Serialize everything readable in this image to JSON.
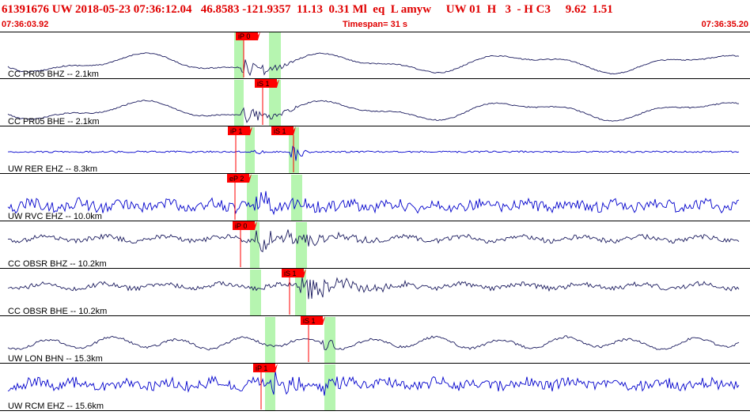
{
  "header": {
    "event_line": "61391676 UW 2018-05-23 07:36:12.04   46.8583 -121.9357  11.13  0.31 Ml  eq  L amyw     UW 01  H   3  - H C3     9.62  1.51",
    "start_time": "07:36:03.92",
    "timespan": "Timespan=  31 s",
    "end_time": "07:36:35.20"
  },
  "colors": {
    "header_red": "#e00000",
    "pick_red": "#ff0000",
    "window_green": "#b6f5b0",
    "trace_blue": "#0000cc",
    "trace_navy": "#1a1a5e"
  },
  "channels": [
    {
      "label": "CC PR05 BHZ -- 2.1km",
      "color": "navy",
      "style": "lowfreq",
      "picks": [
        {
          "text": "iP 0",
          "dir": "down"
        }
      ],
      "windows": 2
    },
    {
      "label": "CC PR05 BHE -- 2.1km",
      "color": "navy",
      "style": "lowfreq",
      "picks": [
        {
          "text": "iS 1",
          "dir": "down"
        }
      ],
      "windows": 2
    },
    {
      "label": "UW RER EHZ -- 8.3km",
      "color": "blue",
      "style": "quiet",
      "picks": [
        {
          "text": "iP 1",
          "dir": "down"
        },
        {
          "text": "iS 1",
          "dir": "down"
        }
      ],
      "windows": 2
    },
    {
      "label": "UW RVC EHZ -- 10.0km",
      "color": "blue",
      "style": "noisy",
      "picks": [
        {
          "text": "eP 2",
          "dir": "down"
        }
      ],
      "windows": 2
    },
    {
      "label": "CC OBSR BHZ -- 10.2km",
      "color": "navy",
      "style": "mid",
      "picks": [
        {
          "text": "iP 0",
          "dir": "down"
        }
      ],
      "windows": 2
    },
    {
      "label": "CC OBSR BHE -- 10.2km",
      "color": "navy",
      "style": "mid",
      "picks": [
        {
          "text": "iS 1",
          "dir": "down"
        }
      ],
      "windows": 2
    },
    {
      "label": "UW LON BHN -- 15.3km",
      "color": "navy",
      "style": "swell",
      "picks": [
        {
          "text": "iS 1",
          "dir": "down"
        }
      ],
      "windows": 2
    },
    {
      "label": "UW RCM EHZ -- 15.6km",
      "color": "blue",
      "style": "noisy",
      "picks": [
        {
          "text": "iP 1",
          "dir": "down"
        }
      ],
      "windows": 2
    }
  ]
}
